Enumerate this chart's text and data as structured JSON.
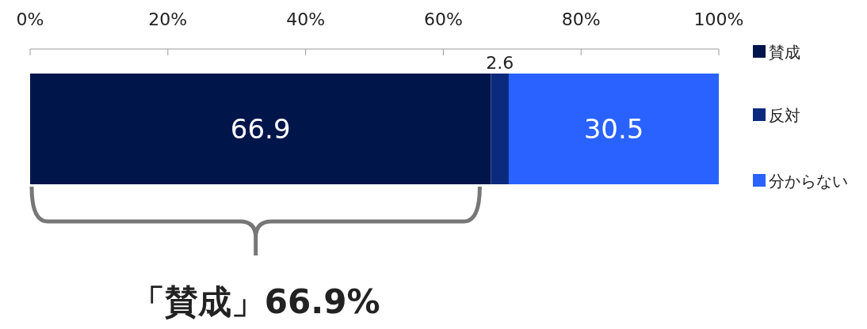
{
  "chart_data": {
    "type": "bar",
    "orientation": "horizontal",
    "stacked": true,
    "categories": [
      null
    ],
    "series": [
      {
        "name": "賛成",
        "color": "#00154a",
        "values": [
          66.9
        ]
      },
      {
        "name": "反対",
        "color": "#0b2a7e",
        "values": [
          2.6
        ]
      },
      {
        "name": "分からない",
        "color": "#2962ff",
        "values": [
          30.5
        ]
      }
    ],
    "xlim": [
      0,
      100
    ],
    "xticks": [
      {
        "value": 0,
        "label": "0%"
      },
      {
        "value": 20,
        "label": "20%"
      },
      {
        "value": 40,
        "label": "40%"
      },
      {
        "value": 60,
        "label": "60%"
      },
      {
        "value": 80,
        "label": "80%"
      },
      {
        "value": 100,
        "label": "100%"
      }
    ],
    "data_labels": true,
    "legend": "right",
    "grid": false,
    "annotations": [
      "「賛成」66.9%"
    ]
  }
}
